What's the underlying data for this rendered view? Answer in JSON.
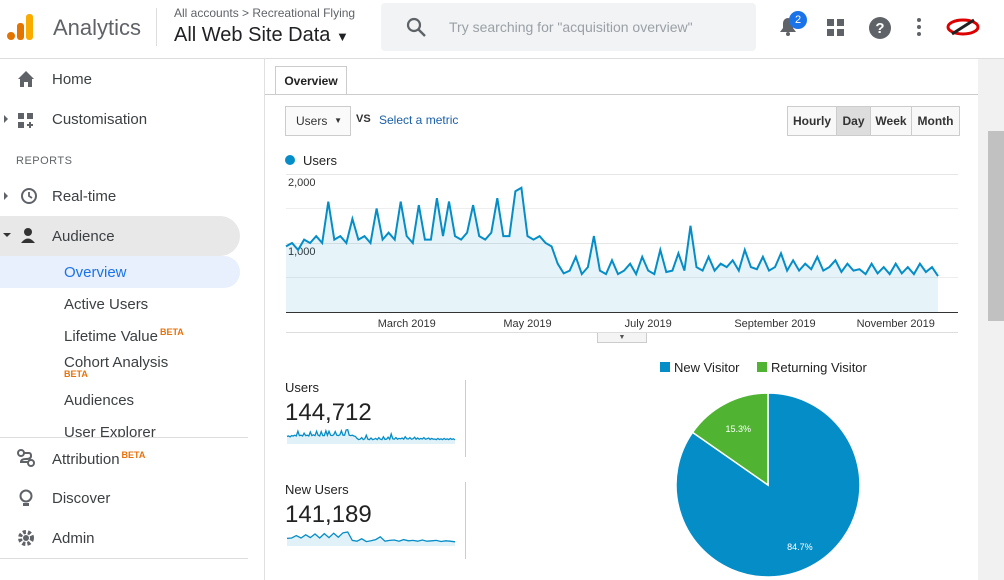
{
  "header": {
    "product": "Analytics",
    "breadcrumb": "All accounts",
    "account": "Recreational Flying",
    "property": "All Web Site Data",
    "search_placeholder": "Try searching for \"acquisition overview\"",
    "notifications": 2
  },
  "sidebar": {
    "items": [
      {
        "label": "Home"
      },
      {
        "label": "Customisation"
      }
    ],
    "section": "REPORTS",
    "reports": [
      {
        "label": "Real-time"
      },
      {
        "label": "Audience"
      }
    ],
    "audience_items": [
      {
        "label": "Overview"
      },
      {
        "label": "Active Users"
      },
      {
        "label": "Lifetime Value",
        "badge": "BETA"
      },
      {
        "label": "Cohort Analysis",
        "badge": "BETA"
      },
      {
        "label": "Audiences"
      },
      {
        "label": "User Explorer"
      }
    ],
    "bottom_items": [
      {
        "label": "Attribution",
        "badge": "BETA"
      },
      {
        "label": "Discover"
      },
      {
        "label": "Admin"
      }
    ]
  },
  "toolbar": {
    "tab": "Overview",
    "metric": "Users",
    "vs": "VS",
    "select_metric": "Select a metric",
    "periods": [
      "Hourly",
      "Day",
      "Week",
      "Month"
    ],
    "active_period": "Day"
  },
  "metrics": [
    {
      "label": "Users",
      "value": "144,712"
    },
    {
      "label": "New Users",
      "value": "141,189",
      "sparkline": [
        950,
        1000,
        1300,
        1000,
        1400,
        1050,
        1500,
        1000,
        1550,
        1050,
        1600,
        1100,
        1650,
        1750,
        700,
        600,
        900,
        550,
        650,
        800,
        1150,
        600,
        700,
        750,
        600,
        800,
        650,
        700,
        600,
        750,
        600,
        650,
        700,
        560,
        650,
        600,
        520
      ]
    }
  ],
  "chart_data": [
    {
      "type": "line",
      "categories": [
        null,
        null,
        null,
        null,
        null,
        null,
        null,
        null,
        null,
        null,
        null,
        null,
        null,
        null,
        null,
        null,
        null,
        null,
        null,
        null,
        "March 2019",
        null,
        null,
        null,
        null,
        null,
        null,
        null,
        null,
        null,
        null,
        null,
        null,
        null,
        null,
        null,
        null,
        null,
        null,
        null,
        "May 2019",
        null,
        null,
        null,
        null,
        null,
        null,
        null,
        null,
        null,
        null,
        null,
        null,
        null,
        null,
        null,
        null,
        null,
        null,
        null,
        "July 2019",
        null,
        null,
        null,
        null,
        null,
        null,
        null,
        null,
        null,
        null,
        null,
        null,
        null,
        null,
        null,
        null,
        null,
        null,
        null,
        null,
        "September 2019",
        null,
        null,
        null,
        null,
        null,
        null,
        null,
        null,
        null,
        null,
        null,
        null,
        null,
        null,
        null,
        null,
        null,
        null,
        null,
        "November 2019",
        null,
        null,
        null,
        null,
        null,
        null,
        null
      ],
      "series": [
        {
          "name": "Users",
          "color": "#058dc7",
          "values": [
            950,
            1000,
            900,
            1050,
            1000,
            1100,
            1000,
            1600,
            1050,
            1100,
            1000,
            1350,
            1050,
            1100,
            1000,
            1500,
            1050,
            1150,
            1050,
            1600,
            1100,
            1000,
            1550,
            1050,
            1050,
            1650,
            1100,
            1600,
            1100,
            1050,
            1150,
            1550,
            1100,
            1050,
            1150,
            1650,
            1100,
            1100,
            1750,
            1800,
            1100,
            1050,
            1100,
            1000,
            950,
            700,
            560,
            600,
            800,
            550,
            650,
            1100,
            600,
            550,
            750,
            550,
            600,
            700,
            550,
            800,
            600,
            550,
            900,
            580,
            600,
            850,
            600,
            1250,
            650,
            600,
            800,
            600,
            700,
            650,
            750,
            600,
            900,
            650,
            620,
            800,
            600,
            650,
            850,
            600,
            750,
            600,
            700,
            620,
            800,
            600,
            650,
            750,
            580,
            700,
            600,
            620,
            550,
            700,
            560,
            650,
            550,
            700,
            560,
            650,
            550,
            700,
            580,
            650,
            520
          ]
        }
      ],
      "ylim": [
        0,
        2000
      ],
      "yticks": [
        {
          "value": 1000,
          "label": "1,000"
        },
        {
          "value": 2000,
          "label": "2,000"
        }
      ],
      "grid": true
    },
    {
      "type": "pie",
      "categories": [
        "New Visitor",
        "Returning Visitor"
      ],
      "values": [
        84.7,
        15.3
      ],
      "value_labels": [
        "84.7%",
        "15.3%"
      ],
      "colors": [
        "#058dc7",
        "#50b432"
      ]
    }
  ]
}
